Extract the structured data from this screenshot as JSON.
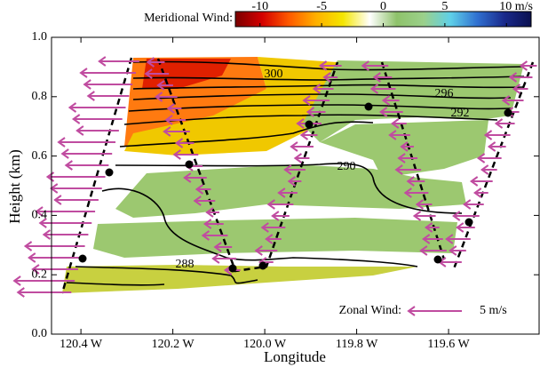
{
  "chart_data": {
    "type": "section",
    "xlabel": "Longitude",
    "ylabel": "Height (km)",
    "xlim": [
      -120.464,
      -119.403
    ],
    "xticks": [
      {
        "value": -120.4,
        "label": "120.4 W"
      },
      {
        "value": -120.2,
        "label": "120.2 W"
      },
      {
        "value": -120.0,
        "label": "120.0 W"
      },
      {
        "value": -119.8,
        "label": "119.8 W"
      },
      {
        "value": -119.6,
        "label": "119.6 W"
      }
    ],
    "ylim": [
      0,
      1
    ],
    "yticks": [
      {
        "value": 0,
        "label": "0.0"
      },
      0.2,
      0.4,
      0.6,
      0.8,
      {
        "value": 1,
        "label": "1.0"
      }
    ],
    "colorbar": {
      "title": "Meridional Wind:",
      "clim": [
        -12,
        12
      ],
      "ticks": [
        -10,
        -5,
        0,
        5,
        {
          "value": 10,
          "label": "10 m/s"
        }
      ],
      "colors": [
        "#7a0000",
        "#d40000",
        "#ff5a00",
        "#ffb000",
        "#f4e600",
        "#ffffff",
        "#8ec26a",
        "#9bd08a",
        "#5fd0e8",
        "#3070d0",
        "#1a2a8c",
        "#0a1050"
      ]
    },
    "contour_labels": [
      300,
      296,
      292,
      290,
      288
    ],
    "arrow_legend": {
      "label": "Zonal Wind:",
      "value": 5,
      "value_label": "5 m/s",
      "color": "#c04ca0"
    }
  }
}
